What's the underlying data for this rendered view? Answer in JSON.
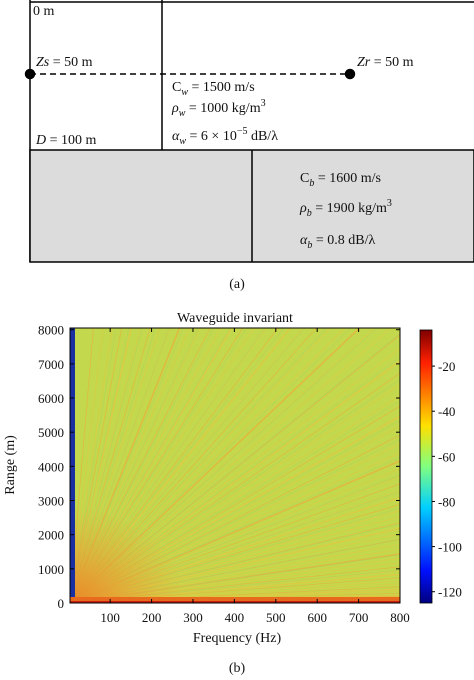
{
  "diagram": {
    "surface_label": "0 m",
    "source_label": [
      {
        "t": "Zs",
        "s": "i"
      },
      {
        "t": " = 50 m",
        "s": ""
      }
    ],
    "receiver_label": [
      {
        "t": "Zr",
        "s": "i"
      },
      {
        "t": " = 50 m",
        "s": ""
      }
    ],
    "depth_label": [
      {
        "t": "D",
        "s": "i"
      },
      {
        "t": " = 100 m",
        "s": ""
      }
    ],
    "water_params": [
      [
        {
          "t": "C",
          "s": ""
        },
        {
          "t": "w",
          "s": "sub"
        },
        {
          "t": " = 1500 m/s",
          "s": ""
        }
      ],
      [
        {
          "t": "ρ",
          "s": "i"
        },
        {
          "t": "w",
          "s": "sub"
        },
        {
          "t": " = 1000 kg/m",
          "s": ""
        },
        {
          "t": "3",
          "s": "sup"
        }
      ],
      [
        {
          "t": "α",
          "s": "i"
        },
        {
          "t": "w",
          "s": "sub"
        },
        {
          "t": " = 6 × 10",
          "s": ""
        },
        {
          "t": "−5",
          "s": "sup"
        },
        {
          "t": " dB/λ",
          "s": ""
        }
      ]
    ],
    "bottom_params": [
      [
        {
          "t": "C",
          "s": ""
        },
        {
          "t": "b",
          "s": "sub"
        },
        {
          "t": " = 1600 m/s",
          "s": ""
        }
      ],
      [
        {
          "t": "ρ",
          "s": "i"
        },
        {
          "t": "b",
          "s": "sub"
        },
        {
          "t": " = 1900 kg/m",
          "s": ""
        },
        {
          "t": "3",
          "s": "sup"
        }
      ],
      [
        {
          "t": "α",
          "s": "i"
        },
        {
          "t": "b",
          "s": "sub"
        },
        {
          "t": " = 0.8 dB/λ",
          "s": ""
        }
      ]
    ],
    "caption": "(a)"
  },
  "chart_data": {
    "type": "heatmap",
    "title": "Waveguide invariant",
    "xlabel": "Frequency (Hz)",
    "ylabel": "Range (m)",
    "xlim": [
      3,
      800
    ],
    "ylim": [
      0,
      8050
    ],
    "xticks": [
      100,
      200,
      300,
      400,
      500,
      600,
      700,
      800
    ],
    "yticks": [
      0,
      1000,
      2000,
      3000,
      4000,
      5000,
      6000,
      7000,
      8000
    ],
    "colorbar": {
      "clim": [
        -125,
        -4
      ],
      "ticks": [
        -120,
        -100,
        -80,
        -60,
        -40,
        -20
      ]
    },
    "caption": "(b)"
  }
}
